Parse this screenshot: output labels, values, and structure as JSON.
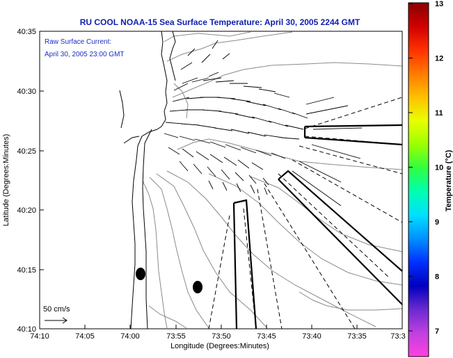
{
  "title": "RU COOL  NOAA-15  Sea Surface Temperature:  April 30, 2005 2244 GMT",
  "inset": {
    "line1": "Raw Surface Current:",
    "line2": "April 30, 2005 23:00 GMT"
  },
  "scale_label": "50 cm/s",
  "x_axis": {
    "label": "Longitude (Degrees:Minutes)",
    "ticks": [
      "74:10",
      "74:05",
      "74:00",
      "73:55",
      "73:50",
      "73:45",
      "73:40",
      "73:35",
      "73:3"
    ]
  },
  "y_axis": {
    "label": "Latitude (Degrees:Minutes)",
    "ticks": [
      "40:35",
      "40:30",
      "40:25",
      "40:20",
      "40:15",
      "40:10"
    ]
  },
  "colorbar": {
    "label": "Temperature (°C)",
    "ticks": [
      "13",
      "12",
      "11",
      "10",
      "9",
      "8",
      "7"
    ],
    "colors": [
      "#8b0000",
      "#d00000",
      "#ff3000",
      "#ff7a00",
      "#ffc000",
      "#e8ff00",
      "#9cff00",
      "#30ff40",
      "#00ffb0",
      "#00e0ff",
      "#0090ff",
      "#0030ff",
      "#0000c0",
      "#6a2ad0",
      "#c040e0",
      "#ff40e0"
    ]
  },
  "palette": {
    "title": "#1020b0",
    "inset_text": "#1a2fc0",
    "contour": "#808080",
    "coast": "#000000"
  }
}
